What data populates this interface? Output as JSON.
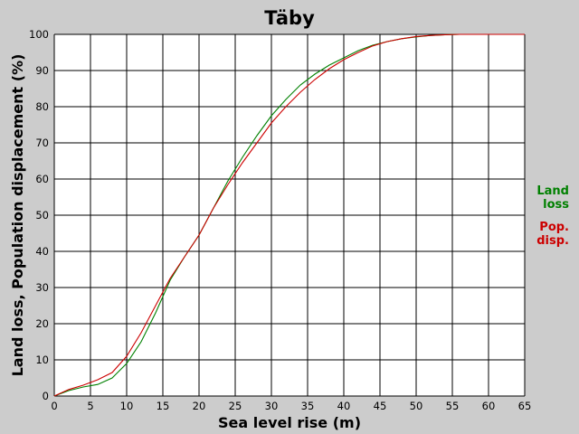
{
  "chart_data": {
    "type": "line",
    "title": "Täby",
    "xlabel": "Sea level rise (m)",
    "ylabel": "Land loss, Population displacement (%)",
    "xlim": [
      0,
      65
    ],
    "ylim": [
      0,
      100
    ],
    "xticks": [
      0,
      5,
      10,
      15,
      20,
      25,
      30,
      35,
      40,
      45,
      50,
      55,
      60,
      65
    ],
    "yticks": [
      0,
      10,
      20,
      30,
      40,
      50,
      60,
      70,
      80,
      90,
      100
    ],
    "grid": true,
    "legend_position": "right",
    "colors": {
      "background": "#cccccc",
      "plot_bg": "#ffffff",
      "grid": "#000000"
    },
    "series": [
      {
        "name": "Land loss",
        "legend_lines": [
          "Land",
          "loss"
        ],
        "color": "#008000",
        "x": [
          0,
          2,
          4,
          6,
          8,
          10,
          12,
          14,
          16,
          18,
          20,
          22,
          24,
          26,
          28,
          30,
          32,
          34,
          36,
          38,
          40,
          42,
          44,
          46,
          48,
          50,
          52,
          54,
          56,
          58,
          60,
          62,
          65
        ],
        "y": [
          0,
          1.5,
          2.5,
          3.2,
          5,
          9,
          15,
          23,
          32,
          38.5,
          44.5,
          52,
          59.5,
          66,
          72,
          77.5,
          82,
          86,
          89,
          91.5,
          93.5,
          95.5,
          97,
          98,
          98.8,
          99.3,
          99.7,
          99.9,
          100,
          100,
          100,
          100,
          100
        ]
      },
      {
        "name": "Pop. disp.",
        "legend_lines": [
          "Pop.",
          "disp."
        ],
        "color": "#cc0000",
        "x": [
          0,
          2,
          4,
          6,
          8,
          10,
          12,
          14,
          16,
          18,
          20,
          22,
          24,
          26,
          28,
          30,
          32,
          34,
          36,
          38,
          40,
          42,
          44,
          46,
          48,
          50,
          52,
          54,
          56,
          58,
          60,
          62,
          65
        ],
        "y": [
          0,
          1.8,
          3,
          4.5,
          6.5,
          11,
          17.5,
          25,
          32.5,
          38.5,
          44.5,
          52,
          58.5,
          64.5,
          70,
          75.5,
          80,
          84,
          87.5,
          90.5,
          93,
          95,
          96.8,
          98,
          98.8,
          99.4,
          99.7,
          99.9,
          100,
          100,
          100,
          100,
          100
        ]
      }
    ]
  }
}
